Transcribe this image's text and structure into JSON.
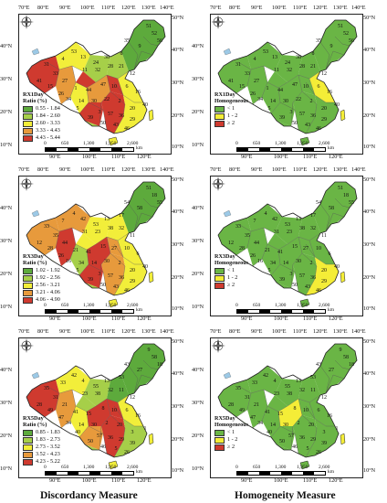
{
  "coord_labels": {
    "top_axis": [
      "70°E",
      "80°E",
      "90°E",
      "100°E",
      "110°E",
      "120°E",
      "130°E",
      "140°E"
    ],
    "bottom_axis": [
      "90°E",
      "100°E",
      "110°E",
      "120°E"
    ],
    "right_axis": [
      "50°N",
      "40°N",
      "30°N",
      "20°N",
      "10°N"
    ],
    "left_axis": [
      "40°N",
      "30°N",
      "20°N",
      "10°N"
    ]
  },
  "scale": {
    "ticks": [
      "0",
      "650",
      "1,300",
      "1,950",
      "2,600"
    ],
    "unit": "km"
  },
  "captions": {
    "left": "Discordancy Measure",
    "right": "Homogeneity Measure"
  },
  "colors": {
    "disc": [
      "#5daa3c",
      "#a6cf49",
      "#f2ee3a",
      "#e79a3c",
      "#cf3a2f"
    ],
    "homo": [
      "#6ab545",
      "#f4ed37",
      "#cf3a2f"
    ],
    "border": "#555555"
  },
  "panels": [
    {
      "kind": "disc",
      "legend": {
        "title1": "RX1Day",
        "title2": "Ratio (%)",
        "classes": [
          "0.55 - 1.84",
          "1.84 - 2.60",
          "2.60 - 3.33",
          "3.33 - 4.43",
          "4.43 - 5.44"
        ]
      },
      "site_labels": [
        "51",
        "52",
        "56",
        "35",
        "9",
        "8",
        "38",
        "24",
        "13",
        "53",
        "4",
        "31",
        "33",
        "11",
        "32",
        "28",
        "21",
        "12",
        "41",
        "15",
        "27",
        "1",
        "44",
        "47",
        "10",
        "6",
        "16",
        "34",
        "14",
        "30",
        "22",
        "2",
        "20",
        "3",
        "57",
        "36",
        "29",
        "39",
        "50",
        "43",
        "46",
        "5",
        "26",
        "40"
      ]
    },
    {
      "kind": "homo",
      "legend": {
        "title1": "RX1Day",
        "title2": "Homogeneous",
        "classes": [
          "< 1",
          "1 - 2",
          "≥ 2"
        ]
      },
      "site_labels": [
        "51",
        "52",
        "56",
        "35",
        "9",
        "8",
        "38",
        "24",
        "13",
        "53",
        "4",
        "31",
        "33",
        "11",
        "32",
        "28",
        "21",
        "12",
        "41",
        "15",
        "27",
        "1",
        "44",
        "47",
        "10",
        "6",
        "16",
        "34",
        "14",
        "30",
        "22",
        "2",
        "20",
        "3",
        "57",
        "36",
        "29",
        "39",
        "50",
        "43",
        "46",
        "5",
        "26",
        "40"
      ]
    },
    {
      "kind": "disc",
      "legend": {
        "title1": "RX3Day",
        "title2": "Ratio (%)",
        "classes": [
          "1.02 - 1.92",
          "1.92 - 2.56",
          "2.56 - 3.21",
          "3.21 - 4.06",
          "4.06 - 4.90"
        ]
      },
      "site_labels": [
        "51",
        "18",
        "55",
        "54",
        "58",
        "17",
        "13",
        "53",
        "42",
        "4",
        "7",
        "33",
        "35",
        "31",
        "23",
        "38",
        "32",
        "11",
        "12",
        "28",
        "44",
        "21",
        "41",
        "15",
        "27",
        "10",
        "6",
        "16",
        "34",
        "14",
        "30",
        "2",
        "20",
        "3",
        "57",
        "36",
        "29",
        "39",
        "50",
        "43",
        "46",
        "5",
        "26",
        "40"
      ]
    },
    {
      "kind": "homo",
      "legend": {
        "title1": "RX3Day",
        "title2": "Homogeneous",
        "classes": [
          "< 1",
          "1 - 2",
          "≥ 2"
        ]
      },
      "site_labels": [
        "51",
        "18",
        "55",
        "54",
        "58",
        "17",
        "13",
        "53",
        "42",
        "4",
        "7",
        "33",
        "35",
        "31",
        "23",
        "38",
        "32",
        "11",
        "12",
        "28",
        "44",
        "21",
        "41",
        "15",
        "27",
        "10",
        "6",
        "16",
        "34",
        "14",
        "30",
        "2",
        "20",
        "3",
        "57",
        "36",
        "29",
        "39",
        "50",
        "43",
        "46",
        "5",
        "26",
        "40"
      ]
    },
    {
      "kind": "disc",
      "legend": {
        "title1": "RX5Day",
        "title2": "Ratio (%)",
        "classes": [
          "0.85 - 1.83",
          "1.83 - 2.73",
          "2.73 - 3.52",
          "3.52 - 4.23",
          "4.23 - 5.22"
        ]
      },
      "site_labels": [
        "9",
        "58",
        "18",
        "43",
        "27",
        "53",
        "13",
        "55",
        "4",
        "42",
        "33",
        "35",
        "31",
        "23",
        "38",
        "32",
        "11",
        "12",
        "28",
        "49",
        "21",
        "41",
        "15",
        "8",
        "10",
        "6",
        "16",
        "34",
        "14",
        "30",
        "2",
        "20",
        "3",
        "57",
        "36",
        "29",
        "39",
        "50",
        "46",
        "5",
        "26",
        "40",
        "47",
        "1"
      ]
    },
    {
      "kind": "homo",
      "legend": {
        "title1": "RX5Day",
        "title2": "Homogeneous",
        "classes": [
          "< 1",
          "1 - 2",
          "≥ 2"
        ]
      },
      "site_labels": [
        "9",
        "58",
        "18",
        "43",
        "27",
        "53",
        "13",
        "55",
        "4",
        "42",
        "33",
        "35",
        "31",
        "23",
        "38",
        "32",
        "11",
        "12",
        "28",
        "49",
        "21",
        "41",
        "15",
        "8",
        "10",
        "6",
        "16",
        "34",
        "14",
        "30",
        "2",
        "20",
        "3",
        "57",
        "36",
        "29",
        "39",
        "50",
        "46",
        "5",
        "26",
        "40",
        "47",
        "1"
      ]
    }
  ]
}
